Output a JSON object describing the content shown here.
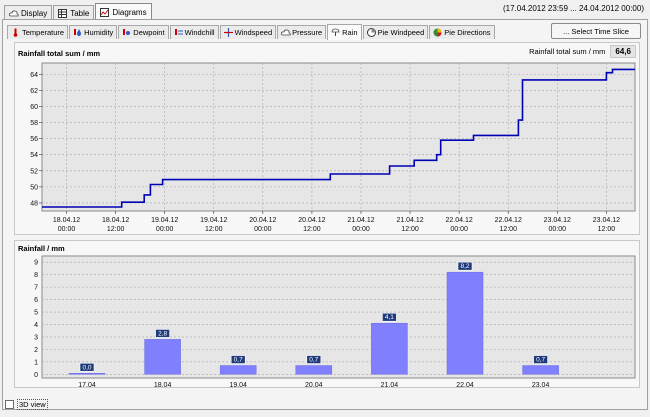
{
  "top_tabs": [
    {
      "label": "Display",
      "icon": "cloud-icon"
    },
    {
      "label": "Table",
      "icon": "table-icon"
    },
    {
      "label": "Diagrams",
      "icon": "diagram-icon",
      "active": true
    }
  ],
  "date_range": "(17.04.2012 23:59 ... 24.04.2012 00:00)",
  "sub_tabs": [
    {
      "label": "Temperature",
      "icon": "thermometer-icon"
    },
    {
      "label": "Humidity",
      "icon": "humidity-icon"
    },
    {
      "label": "Dewpoint",
      "icon": "dewpoint-icon"
    },
    {
      "label": "Windchill",
      "icon": "windchill-icon"
    },
    {
      "label": "Windspeed",
      "icon": "windspeed-icon"
    },
    {
      "label": "Pressure",
      "icon": "pressure-icon"
    },
    {
      "label": "Rain",
      "icon": "rain-icon",
      "active": true
    },
    {
      "label": "Pie Windpeed",
      "icon": "pie-windspeed-icon"
    },
    {
      "label": "Pie Directions",
      "icon": "pie-directions-icon"
    }
  ],
  "select_button": "... Select Time Slice",
  "top_chart": {
    "title": "Rainfall total sum / mm",
    "total_label": "Rainfall total sum / mm",
    "total_value": "64,6"
  },
  "bottom_chart": {
    "title": "Rainfall / mm"
  },
  "view_3d_label": "3D view",
  "colors": {
    "line": "#0000b4",
    "bar": "#8080ff",
    "label_bg": "#1f3a7a",
    "grid": "#a8a8a8"
  },
  "chart_data": [
    {
      "type": "line",
      "title": "Rainfall total sum / mm",
      "x_tick_labels": [
        [
          "18.04.12",
          "00:00"
        ],
        [
          "18.04.12",
          "12:00"
        ],
        [
          "19.04.12",
          "00:00"
        ],
        [
          "19.04.12",
          "12:00"
        ],
        [
          "20.04.12",
          "00:00"
        ],
        [
          "20.04.12",
          "12:00"
        ],
        [
          "21.04.12",
          "00:00"
        ],
        [
          "21.04.12",
          "12:00"
        ],
        [
          "22.04.12",
          "00:00"
        ],
        [
          "22.04.12",
          "12:00"
        ],
        [
          "23.04.12",
          "00:00"
        ],
        [
          "23.04.12",
          "12:00"
        ]
      ],
      "x_tick_hours": [
        0,
        12,
        24,
        36,
        48,
        60,
        72,
        84,
        96,
        108,
        120,
        132
      ],
      "x_range_hours": [
        -6,
        139
      ],
      "ylim": [
        47,
        65.4
      ],
      "y_ticks": [
        48,
        50,
        52,
        54,
        56,
        58,
        60,
        62,
        64
      ],
      "grid": true,
      "series": [
        {
          "step_points_hours_mm": [
            [
              -6,
              47.5
            ],
            [
              13.5,
              47.5
            ],
            [
              13.5,
              48.1
            ],
            [
              19,
              48.1
            ],
            [
              19,
              49.0
            ],
            [
              20.5,
              49.0
            ],
            [
              20.5,
              50.3
            ],
            [
              23.5,
              50.3
            ],
            [
              23.5,
              50.9
            ],
            [
              64.5,
              50.9
            ],
            [
              64.5,
              51.6
            ],
            [
              79,
              51.6
            ],
            [
              79,
              52.6
            ],
            [
              85,
              52.6
            ],
            [
              85,
              53.3
            ],
            [
              90.5,
              53.3
            ],
            [
              90.5,
              54.0
            ],
            [
              91.5,
              54.0
            ],
            [
              91.5,
              55.8
            ],
            [
              99.5,
              55.8
            ],
            [
              99.5,
              56.4
            ],
            [
              110.5,
              56.4
            ],
            [
              110.5,
              58.3
            ],
            [
              111.5,
              58.3
            ],
            [
              111.5,
              63.3
            ],
            [
              132,
              63.3
            ],
            [
              132,
              64.2
            ],
            [
              133.5,
              64.2
            ],
            [
              133.5,
              64.6
            ],
            [
              139,
              64.6
            ]
          ]
        }
      ]
    },
    {
      "type": "bar",
      "title": "Rainfall / mm",
      "categories": [
        "17.04",
        "18.04",
        "19.04",
        "20.04",
        "21.04",
        "22.04",
        "23.04"
      ],
      "values": [
        0.0,
        2.8,
        0.7,
        0.7,
        4.1,
        8.2,
        0.7
      ],
      "value_labels": [
        "0,0",
        "2,8",
        "0,7",
        "0,7",
        "4,1",
        "8,2",
        "0,7"
      ],
      "ylim": [
        -0.3,
        9.5
      ],
      "y_ticks": [
        0,
        1,
        2,
        3,
        4,
        5,
        6,
        7,
        8,
        9
      ],
      "grid": true
    }
  ]
}
